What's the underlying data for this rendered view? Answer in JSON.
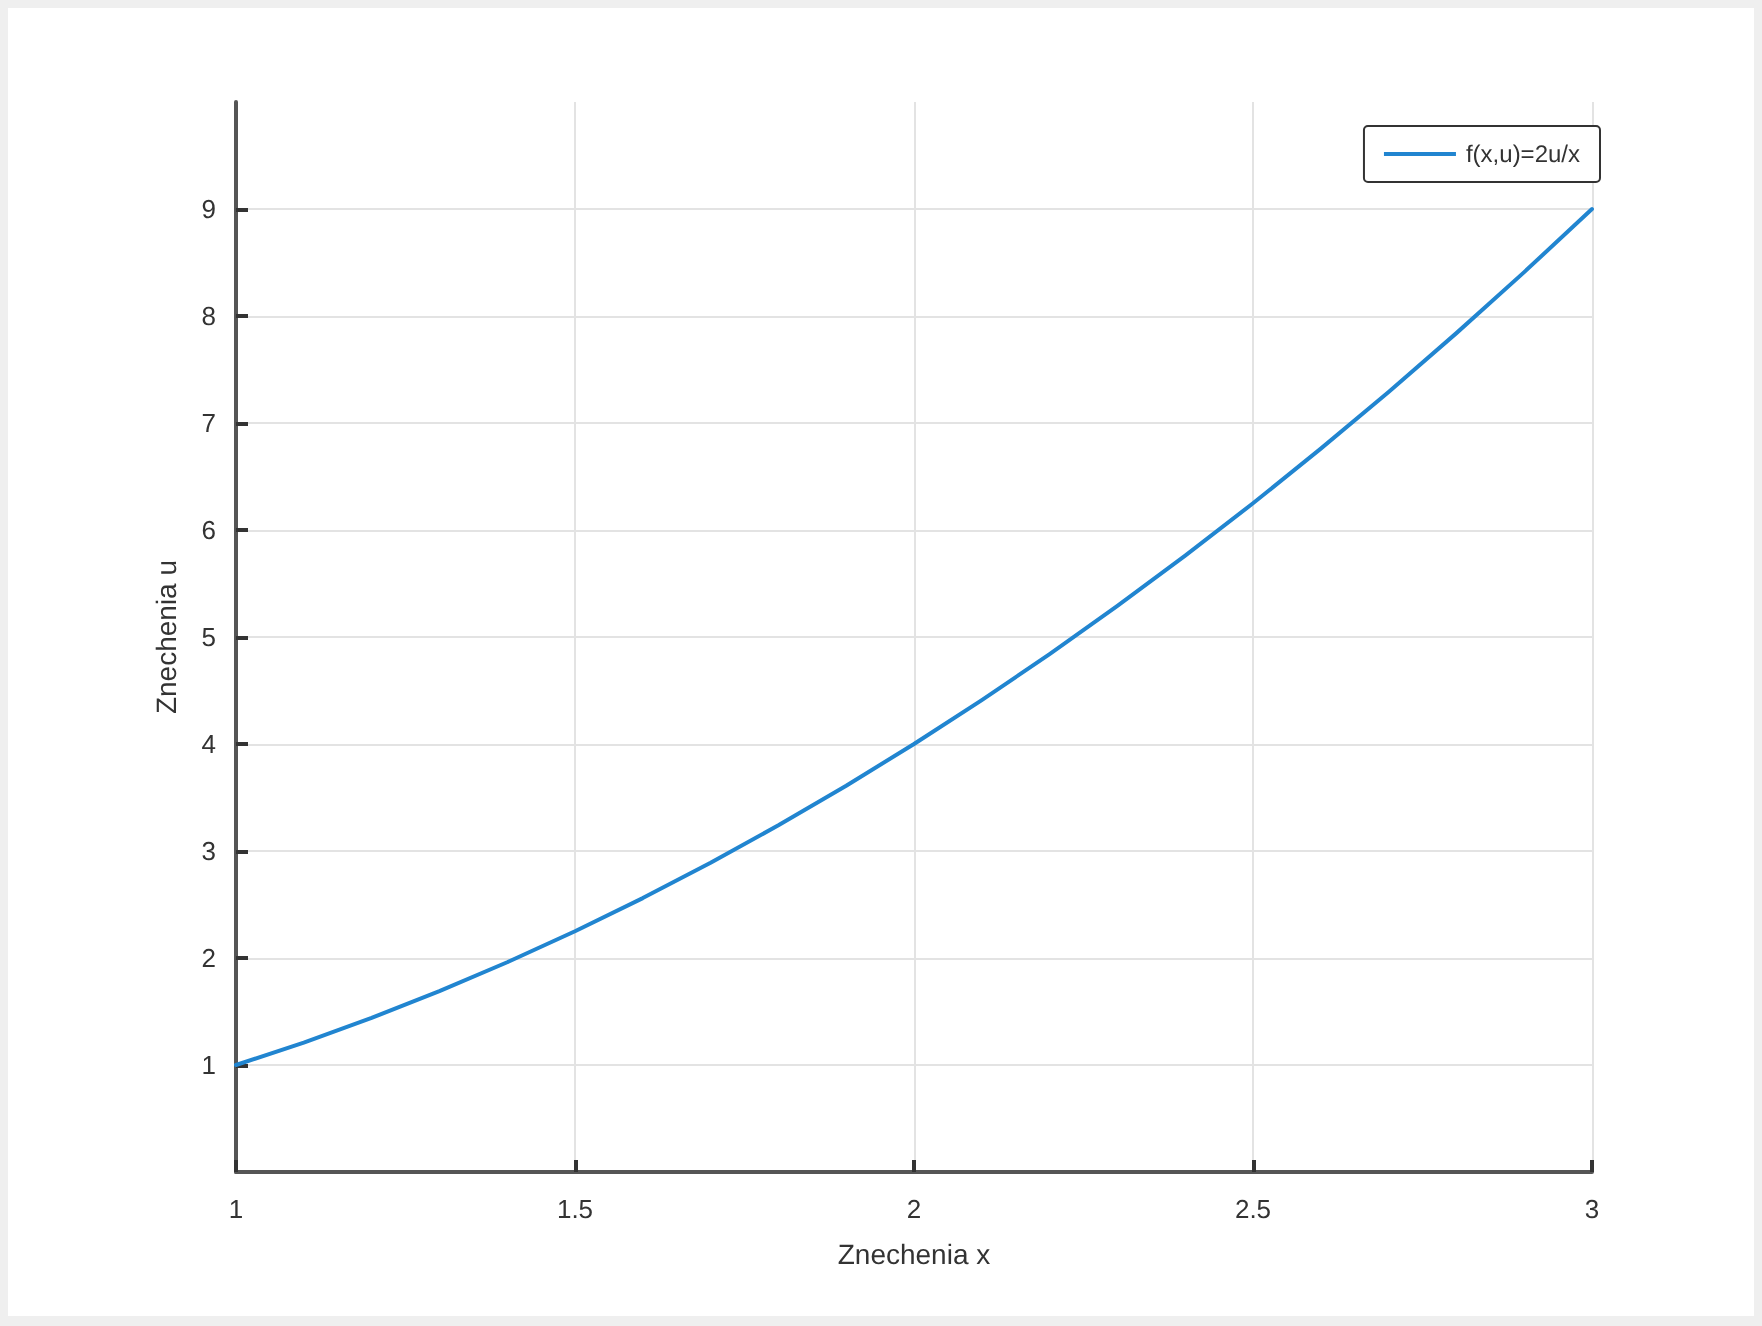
{
  "chart_data": {
    "type": "line",
    "xlabel": "Znechenia x",
    "ylabel": "Znechenia u",
    "x": [
      1,
      1.1,
      1.2,
      1.3,
      1.4,
      1.5,
      1.6,
      1.7,
      1.8,
      1.9,
      2,
      2.1,
      2.2,
      2.3,
      2.4,
      2.5,
      2.6,
      2.7,
      2.8,
      2.9,
      3
    ],
    "series": [
      {
        "name": "f(x,u)=2u/x",
        "color": "#2185d0",
        "values": [
          1,
          1.21,
          1.44,
          1.69,
          1.96,
          2.25,
          2.56,
          2.89,
          3.24,
          3.61,
          4,
          4.41,
          4.84,
          5.29,
          5.76,
          6.25,
          6.76,
          7.29,
          7.84,
          8.41,
          9
        ]
      }
    ],
    "xlim": [
      1,
      3
    ],
    "ylim": [
      0,
      10
    ],
    "xticks": [
      1,
      1.5,
      2,
      2.5,
      3
    ],
    "yticks": [
      1,
      2,
      3,
      4,
      5,
      6,
      7,
      8,
      9
    ],
    "grid": true,
    "legend": "top right",
    "marker": "none",
    "line_style": "solid"
  }
}
